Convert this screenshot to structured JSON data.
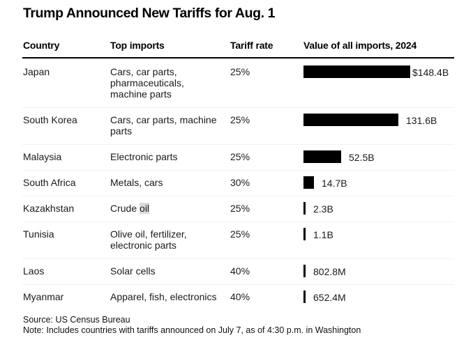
{
  "chart_data": {
    "type": "table",
    "title": "Trump Announced New Tariffs for Aug. 1",
    "columns": [
      "Country",
      "Top imports",
      "Tariff rate",
      "Value of all imports, 2024"
    ],
    "rows": [
      {
        "country": "Japan",
        "imports_lines": [
          "Cars, car parts,",
          "pharmaceuticals,",
          "machine parts"
        ],
        "rate": "25%",
        "value": 148.4,
        "value_label": "$148.4B"
      },
      {
        "country": "South Korea",
        "imports_lines": [
          "Cars, car parts, machine",
          "parts"
        ],
        "rate": "25%",
        "value": 131.6,
        "value_label": "131.6B"
      },
      {
        "country": "Malaysia",
        "imports_lines": [
          "Electronic parts"
        ],
        "rate": "25%",
        "value": 52.5,
        "value_label": "52.5B"
      },
      {
        "country": "South Africa",
        "imports_lines": [
          "Metals, cars"
        ],
        "rate": "30%",
        "value": 14.7,
        "value_label": "14.7B"
      },
      {
        "country": "Kazakhstan",
        "imports_lines": [
          "Crude oil"
        ],
        "rate": "25%",
        "value": 2.3,
        "value_label": "2.3B",
        "highlight_word": "oil"
      },
      {
        "country": "Tunisia",
        "imports_lines": [
          "Olive oil, fertilizer,",
          "electronic parts"
        ],
        "rate": "25%",
        "value": 1.1,
        "value_label": "1.1B"
      },
      {
        "country": "Laos",
        "imports_lines": [
          "Solar cells"
        ],
        "rate": "40%",
        "value": 0.8028,
        "value_label": "802.8M"
      },
      {
        "country": "Myanmar",
        "imports_lines": [
          "Apparel, fish, electronics"
        ],
        "rate": "40%",
        "value": 0.6524,
        "value_label": "652.4M"
      }
    ],
    "value_units": "USD billions",
    "xlim": [
      0,
      148.4
    ]
  },
  "footer": {
    "source": "Source: US Census Bureau",
    "note": "Note: Includes countries with tariffs announced on July 7, as of 4:30 p.m. in Washington"
  }
}
